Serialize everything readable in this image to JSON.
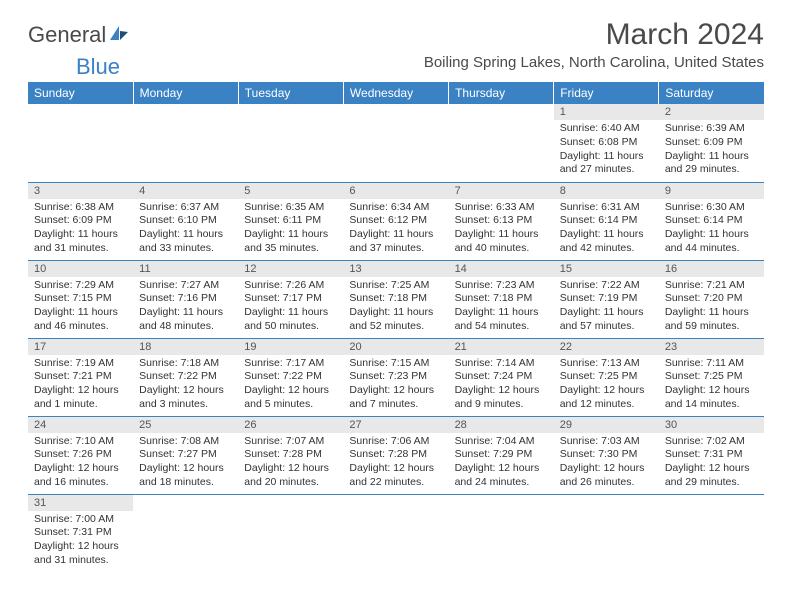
{
  "logo": {
    "text_general": "General",
    "text_blue": "Blue"
  },
  "title": "March 2024",
  "location": "Boiling Spring Lakes, North Carolina, United States",
  "colors": {
    "header_bg": "#3b82c4",
    "header_text": "#ffffff",
    "daynum_bg": "#e8e8e8",
    "row_divider": "#3b82c4",
    "body_text": "#333333"
  },
  "day_headers": [
    "Sunday",
    "Monday",
    "Tuesday",
    "Wednesday",
    "Thursday",
    "Friday",
    "Saturday"
  ],
  "weeks": [
    [
      null,
      null,
      null,
      null,
      null,
      {
        "n": "1",
        "sr": "Sunrise: 6:40 AM",
        "ss": "Sunset: 6:08 PM",
        "d1": "Daylight: 11 hours",
        "d2": "and 27 minutes."
      },
      {
        "n": "2",
        "sr": "Sunrise: 6:39 AM",
        "ss": "Sunset: 6:09 PM",
        "d1": "Daylight: 11 hours",
        "d2": "and 29 minutes."
      }
    ],
    [
      {
        "n": "3",
        "sr": "Sunrise: 6:38 AM",
        "ss": "Sunset: 6:09 PM",
        "d1": "Daylight: 11 hours",
        "d2": "and 31 minutes."
      },
      {
        "n": "4",
        "sr": "Sunrise: 6:37 AM",
        "ss": "Sunset: 6:10 PM",
        "d1": "Daylight: 11 hours",
        "d2": "and 33 minutes."
      },
      {
        "n": "5",
        "sr": "Sunrise: 6:35 AM",
        "ss": "Sunset: 6:11 PM",
        "d1": "Daylight: 11 hours",
        "d2": "and 35 minutes."
      },
      {
        "n": "6",
        "sr": "Sunrise: 6:34 AM",
        "ss": "Sunset: 6:12 PM",
        "d1": "Daylight: 11 hours",
        "d2": "and 37 minutes."
      },
      {
        "n": "7",
        "sr": "Sunrise: 6:33 AM",
        "ss": "Sunset: 6:13 PM",
        "d1": "Daylight: 11 hours",
        "d2": "and 40 minutes."
      },
      {
        "n": "8",
        "sr": "Sunrise: 6:31 AM",
        "ss": "Sunset: 6:14 PM",
        "d1": "Daylight: 11 hours",
        "d2": "and 42 minutes."
      },
      {
        "n": "9",
        "sr": "Sunrise: 6:30 AM",
        "ss": "Sunset: 6:14 PM",
        "d1": "Daylight: 11 hours",
        "d2": "and 44 minutes."
      }
    ],
    [
      {
        "n": "10",
        "sr": "Sunrise: 7:29 AM",
        "ss": "Sunset: 7:15 PM",
        "d1": "Daylight: 11 hours",
        "d2": "and 46 minutes."
      },
      {
        "n": "11",
        "sr": "Sunrise: 7:27 AM",
        "ss": "Sunset: 7:16 PM",
        "d1": "Daylight: 11 hours",
        "d2": "and 48 minutes."
      },
      {
        "n": "12",
        "sr": "Sunrise: 7:26 AM",
        "ss": "Sunset: 7:17 PM",
        "d1": "Daylight: 11 hours",
        "d2": "and 50 minutes."
      },
      {
        "n": "13",
        "sr": "Sunrise: 7:25 AM",
        "ss": "Sunset: 7:18 PM",
        "d1": "Daylight: 11 hours",
        "d2": "and 52 minutes."
      },
      {
        "n": "14",
        "sr": "Sunrise: 7:23 AM",
        "ss": "Sunset: 7:18 PM",
        "d1": "Daylight: 11 hours",
        "d2": "and 54 minutes."
      },
      {
        "n": "15",
        "sr": "Sunrise: 7:22 AM",
        "ss": "Sunset: 7:19 PM",
        "d1": "Daylight: 11 hours",
        "d2": "and 57 minutes."
      },
      {
        "n": "16",
        "sr": "Sunrise: 7:21 AM",
        "ss": "Sunset: 7:20 PM",
        "d1": "Daylight: 11 hours",
        "d2": "and 59 minutes."
      }
    ],
    [
      {
        "n": "17",
        "sr": "Sunrise: 7:19 AM",
        "ss": "Sunset: 7:21 PM",
        "d1": "Daylight: 12 hours",
        "d2": "and 1 minute."
      },
      {
        "n": "18",
        "sr": "Sunrise: 7:18 AM",
        "ss": "Sunset: 7:22 PM",
        "d1": "Daylight: 12 hours",
        "d2": "and 3 minutes."
      },
      {
        "n": "19",
        "sr": "Sunrise: 7:17 AM",
        "ss": "Sunset: 7:22 PM",
        "d1": "Daylight: 12 hours",
        "d2": "and 5 minutes."
      },
      {
        "n": "20",
        "sr": "Sunrise: 7:15 AM",
        "ss": "Sunset: 7:23 PM",
        "d1": "Daylight: 12 hours",
        "d2": "and 7 minutes."
      },
      {
        "n": "21",
        "sr": "Sunrise: 7:14 AM",
        "ss": "Sunset: 7:24 PM",
        "d1": "Daylight: 12 hours",
        "d2": "and 9 minutes."
      },
      {
        "n": "22",
        "sr": "Sunrise: 7:13 AM",
        "ss": "Sunset: 7:25 PM",
        "d1": "Daylight: 12 hours",
        "d2": "and 12 minutes."
      },
      {
        "n": "23",
        "sr": "Sunrise: 7:11 AM",
        "ss": "Sunset: 7:25 PM",
        "d1": "Daylight: 12 hours",
        "d2": "and 14 minutes."
      }
    ],
    [
      {
        "n": "24",
        "sr": "Sunrise: 7:10 AM",
        "ss": "Sunset: 7:26 PM",
        "d1": "Daylight: 12 hours",
        "d2": "and 16 minutes."
      },
      {
        "n": "25",
        "sr": "Sunrise: 7:08 AM",
        "ss": "Sunset: 7:27 PM",
        "d1": "Daylight: 12 hours",
        "d2": "and 18 minutes."
      },
      {
        "n": "26",
        "sr": "Sunrise: 7:07 AM",
        "ss": "Sunset: 7:28 PM",
        "d1": "Daylight: 12 hours",
        "d2": "and 20 minutes."
      },
      {
        "n": "27",
        "sr": "Sunrise: 7:06 AM",
        "ss": "Sunset: 7:28 PM",
        "d1": "Daylight: 12 hours",
        "d2": "and 22 minutes."
      },
      {
        "n": "28",
        "sr": "Sunrise: 7:04 AM",
        "ss": "Sunset: 7:29 PM",
        "d1": "Daylight: 12 hours",
        "d2": "and 24 minutes."
      },
      {
        "n": "29",
        "sr": "Sunrise: 7:03 AM",
        "ss": "Sunset: 7:30 PM",
        "d1": "Daylight: 12 hours",
        "d2": "and 26 minutes."
      },
      {
        "n": "30",
        "sr": "Sunrise: 7:02 AM",
        "ss": "Sunset: 7:31 PM",
        "d1": "Daylight: 12 hours",
        "d2": "and 29 minutes."
      }
    ],
    [
      {
        "n": "31",
        "sr": "Sunrise: 7:00 AM",
        "ss": "Sunset: 7:31 PM",
        "d1": "Daylight: 12 hours",
        "d2": "and 31 minutes."
      },
      null,
      null,
      null,
      null,
      null,
      null
    ]
  ]
}
